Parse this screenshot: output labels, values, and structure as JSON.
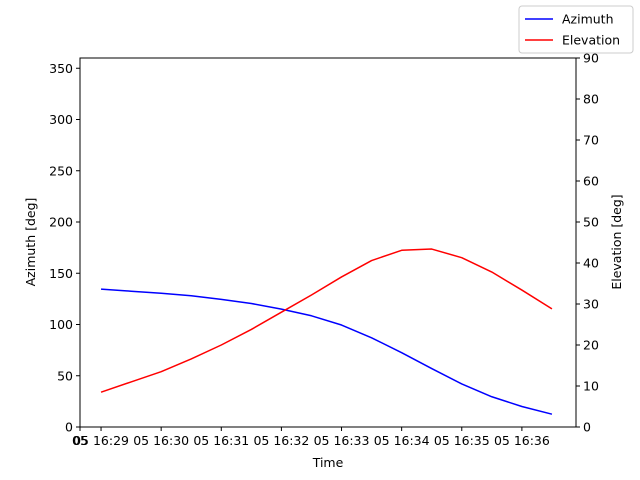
{
  "chart_data": {
    "type": "line",
    "title": "",
    "xlabel": "Time",
    "ylabel_left": "Azimuth [deg]",
    "ylabel_right": "Elevation [deg]",
    "x": [
      0,
      0.5,
      1,
      1.5,
      2,
      2.5,
      3,
      3.5,
      4,
      4.5,
      5,
      5.5,
      6,
      6.5,
      7,
      7.5
    ],
    "xlim": [
      -0.35,
      7.9
    ],
    "x_ticks": [
      {
        "value": -0.35,
        "label": "05"
      },
      {
        "value": 0,
        "label": "05 16:29"
      },
      {
        "value": 1,
        "label": "05 16:30"
      },
      {
        "value": 2,
        "label": "05 16:31"
      },
      {
        "value": 3,
        "label": "05 16:32"
      },
      {
        "value": 4,
        "label": "05 16:33"
      },
      {
        "value": 5,
        "label": "05 16:34"
      },
      {
        "value": 6,
        "label": "05 16:35"
      },
      {
        "value": 7,
        "label": "05 16:36"
      }
    ],
    "ylim_left": [
      0,
      360
    ],
    "yticks_left": [
      "0",
      "50",
      "100",
      "150",
      "200",
      "250",
      "300",
      "350"
    ],
    "ylim_right": [
      0,
      90
    ],
    "yticks_right": [
      "0",
      "10",
      "20",
      "30",
      "40",
      "50",
      "60",
      "70",
      "80",
      "90"
    ],
    "series": [
      {
        "name": "Azimuth",
        "axis": "left",
        "color": "#0000ff",
        "values": [
          134.5,
          132.5,
          130.5,
          128,
          124.5,
          120.5,
          115,
          108.5,
          99.5,
          87,
          72.5,
          57,
          42,
          29.5,
          20,
          12.5
        ]
      },
      {
        "name": "Elevation",
        "axis": "right",
        "color": "#ff0000",
        "values": [
          8.5,
          11,
          13.5,
          16.6,
          20,
          23.8,
          28,
          32.2,
          36.6,
          40.6,
          43.1,
          43.4,
          41.3,
          37.8,
          33.4,
          28.8
        ]
      }
    ],
    "grid": false,
    "legend": "top-right"
  }
}
